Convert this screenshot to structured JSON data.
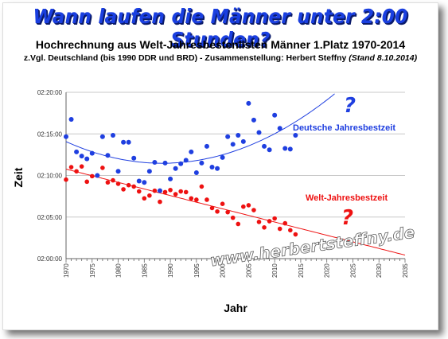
{
  "header": {
    "headline": "Wann laufen die Männer unter 2:00 Stunden?",
    "subtitle": "Hochrechnung aus Welt-Jahresbestenlisten Männer 1.Platz 1970-2014",
    "note": "z.Vgl. Deutschland (bis 1990 DDR und BRD) - Zusammenstellung: Herbert Steffny",
    "note_date": "(Stand 8.10.2014)"
  },
  "watermark": "www.herbertsteffny.de",
  "chart_data": {
    "type": "scatter",
    "xlabel": "Jahr",
    "ylabel": "Zeit",
    "xlim": [
      1970,
      2035
    ],
    "ylim": [
      "02:00:00",
      "02:20:00"
    ],
    "x_ticks": [
      "1970",
      "1975",
      "1980",
      "1985",
      "1990",
      "1995",
      "2000",
      "2005",
      "2010",
      "2015",
      "2020",
      "2025",
      "2030",
      "2035"
    ],
    "y_ticks": [
      "02:00:00",
      "02:05:00",
      "02:10:00",
      "02:15:00",
      "02:20:00"
    ],
    "grid": "horizontal",
    "series": [
      {
        "name": "Deutsche Jahresbestzeit",
        "color": "#1f3fe0",
        "trend": "polynomial",
        "annotation": "?",
        "points": [
          [
            1970,
            "02:14:40"
          ],
          [
            1971,
            "02:16:45"
          ],
          [
            1972,
            "02:12:50"
          ],
          [
            1973,
            "02:12:20"
          ],
          [
            1974,
            "02:12:00"
          ],
          [
            1975,
            "02:12:40"
          ],
          [
            1976,
            "02:10:00"
          ],
          [
            1977,
            "02:14:40"
          ],
          [
            1978,
            "02:12:25"
          ],
          [
            1979,
            "02:14:50"
          ],
          [
            1980,
            "02:10:30"
          ],
          [
            1981,
            "02:14:00"
          ],
          [
            1982,
            "02:14:00"
          ],
          [
            1983,
            "02:12:05"
          ],
          [
            1984,
            "02:09:20"
          ],
          [
            1985,
            "02:09:10"
          ],
          [
            1986,
            "02:10:30"
          ],
          [
            1987,
            "02:11:35"
          ],
          [
            1988,
            "02:08:10"
          ],
          [
            1989,
            "02:11:30"
          ],
          [
            1990,
            "02:09:35"
          ],
          [
            1991,
            "02:10:50"
          ],
          [
            1992,
            "02:11:25"
          ],
          [
            1993,
            "02:11:50"
          ],
          [
            1994,
            "02:12:50"
          ],
          [
            1995,
            "02:10:20"
          ],
          [
            1996,
            "02:11:30"
          ],
          [
            1997,
            "02:13:30"
          ],
          [
            1998,
            "02:11:00"
          ],
          [
            1999,
            "02:10:50"
          ],
          [
            2000,
            "02:12:10"
          ],
          [
            2001,
            "02:14:40"
          ],
          [
            2002,
            "02:13:45"
          ],
          [
            2003,
            "02:14:50"
          ],
          [
            2004,
            "02:14:05"
          ],
          [
            2005,
            "02:18:40"
          ],
          [
            2006,
            "02:16:40"
          ],
          [
            2007,
            "02:15:10"
          ],
          [
            2008,
            "02:13:30"
          ],
          [
            2009,
            "02:13:05"
          ],
          [
            2010,
            "02:17:15"
          ],
          [
            2011,
            "02:15:40"
          ],
          [
            2012,
            "02:13:15"
          ],
          [
            2013,
            "02:13:10"
          ],
          [
            2014,
            "02:14:50"
          ]
        ]
      },
      {
        "name": "Welt-Jahresbestzeit",
        "color": "#ee1111",
        "trend": "linear",
        "annotation": "?",
        "points": [
          [
            1970,
            "02:09:30"
          ],
          [
            1971,
            "02:11:00"
          ],
          [
            1972,
            "02:10:30"
          ],
          [
            1973,
            "02:11:05"
          ],
          [
            1974,
            "02:09:15"
          ],
          [
            1975,
            "02:09:55"
          ],
          [
            1976,
            "02:10:00"
          ],
          [
            1977,
            "02:10:55"
          ],
          [
            1978,
            "02:09:10"
          ],
          [
            1979,
            "02:09:25"
          ],
          [
            1980,
            "02:09:00"
          ],
          [
            1981,
            "02:08:20"
          ],
          [
            1982,
            "02:08:50"
          ],
          [
            1983,
            "02:08:40"
          ],
          [
            1984,
            "02:08:05"
          ],
          [
            1985,
            "02:07:15"
          ],
          [
            1986,
            "02:07:35"
          ],
          [
            1987,
            "02:08:10"
          ],
          [
            1988,
            "02:06:50"
          ],
          [
            1989,
            "02:08:00"
          ],
          [
            1990,
            "02:08:15"
          ],
          [
            1991,
            "02:07:45"
          ],
          [
            1992,
            "02:08:05"
          ],
          [
            1993,
            "02:08:00"
          ],
          [
            1994,
            "02:07:15"
          ],
          [
            1995,
            "02:07:05"
          ],
          [
            1996,
            "02:08:40"
          ],
          [
            1997,
            "02:07:05"
          ],
          [
            1998,
            "02:06:05"
          ],
          [
            1999,
            "02:05:40"
          ],
          [
            2000,
            "02:06:35"
          ],
          [
            2001,
            "02:05:35"
          ],
          [
            2002,
            "02:04:55"
          ],
          [
            2003,
            "02:04:10"
          ],
          [
            2004,
            "02:06:15"
          ],
          [
            2005,
            "02:06:25"
          ],
          [
            2006,
            "02:05:50"
          ],
          [
            2007,
            "02:04:25"
          ],
          [
            2008,
            "02:03:45"
          ],
          [
            2009,
            "02:04:30"
          ],
          [
            2010,
            "02:04:50"
          ],
          [
            2011,
            "02:03:35"
          ],
          [
            2012,
            "02:04:15"
          ],
          [
            2013,
            "02:03:25"
          ],
          [
            2014,
            "02:02:55"
          ]
        ]
      }
    ]
  }
}
